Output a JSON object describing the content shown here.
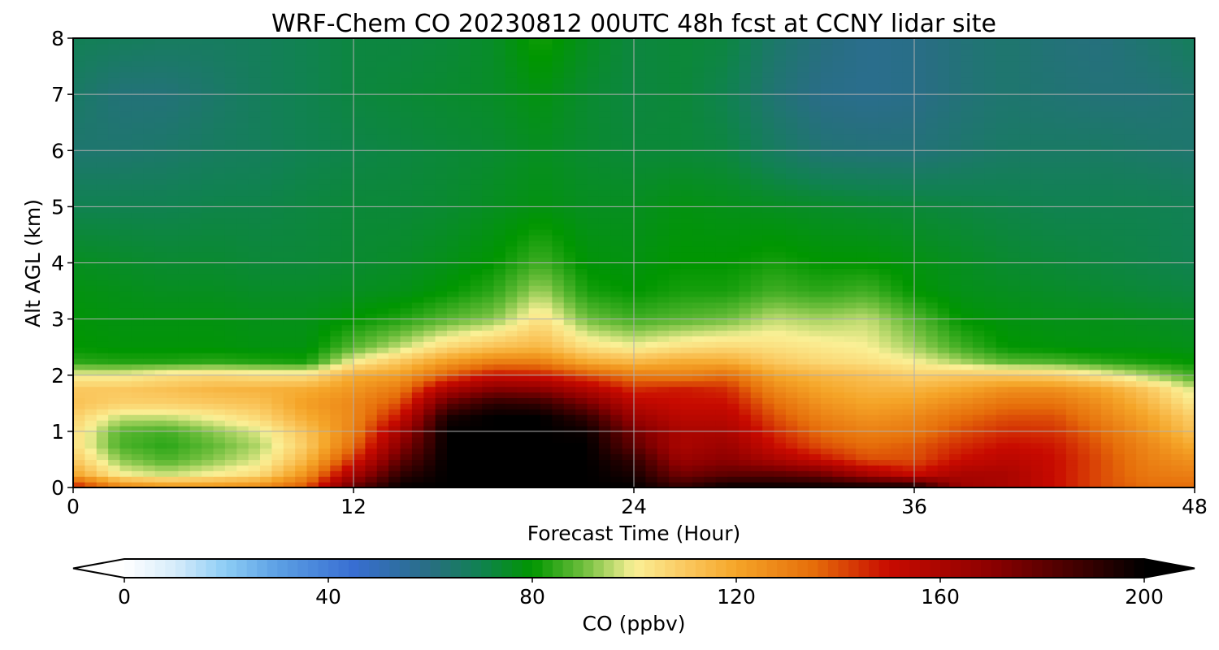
{
  "chart_data": {
    "type": "heatmap",
    "title": "WRF-Chem CO  20230812 00UTC 48h fcst at CCNY lidar site",
    "xlabel": "Forecast Time (Hour)",
    "ylabel": "Alt AGL (km)",
    "xlim": [
      0,
      48
    ],
    "ylim": [
      0,
      8
    ],
    "xticks": [
      0,
      12,
      24,
      36,
      48
    ],
    "yticks": [
      0,
      1,
      2,
      3,
      4,
      5,
      6,
      7,
      8
    ],
    "grid": true,
    "x": [
      0,
      2,
      4,
      6,
      8,
      10,
      12,
      14,
      16,
      18,
      20,
      22,
      24,
      26,
      28,
      30,
      32,
      34,
      36,
      38,
      40,
      42,
      44,
      46,
      48
    ],
    "y": [
      0,
      0.25,
      0.5,
      0.75,
      1,
      1.25,
      1.5,
      1.75,
      2,
      2.25,
      2.5,
      3,
      3.5,
      4,
      5,
      6,
      7,
      8
    ],
    "z": [
      [
        150,
        130,
        125,
        125,
        128,
        140,
        180,
        200,
        200,
        200,
        200,
        200,
        200,
        190,
        200,
        200,
        200,
        200,
        200,
        165,
        160,
        150,
        140,
        135,
        135
      ],
      [
        120,
        100,
        96,
        100,
        105,
        125,
        160,
        190,
        200,
        200,
        200,
        200,
        195,
        175,
        180,
        180,
        175,
        160,
        150,
        160,
        160,
        150,
        140,
        132,
        130
      ],
      [
        110,
        92,
        87,
        92,
        98,
        115,
        145,
        180,
        200,
        200,
        200,
        200,
        190,
        165,
        170,
        160,
        150,
        140,
        140,
        150,
        155,
        150,
        140,
        130,
        125
      ],
      [
        105,
        87,
        84,
        89,
        95,
        110,
        135,
        170,
        200,
        200,
        200,
        200,
        180,
        160,
        165,
        150,
        140,
        135,
        138,
        145,
        150,
        148,
        138,
        128,
        118
      ],
      [
        105,
        88,
        86,
        92,
        98,
        112,
        130,
        162,
        200,
        200,
        200,
        198,
        175,
        160,
        160,
        145,
        135,
        130,
        132,
        140,
        145,
        144,
        135,
        124,
        112
      ],
      [
        108,
        96,
        96,
        100,
        106,
        118,
        128,
        150,
        195,
        200,
        200,
        190,
        165,
        155,
        155,
        140,
        130,
        125,
        128,
        135,
        140,
        140,
        130,
        120,
        108
      ],
      [
        112,
        108,
        108,
        110,
        112,
        122,
        128,
        140,
        180,
        192,
        190,
        175,
        155,
        150,
        150,
        135,
        125,
        120,
        122,
        128,
        134,
        134,
        126,
        115,
        102
      ],
      [
        110,
        110,
        112,
        115,
        116,
        118,
        124,
        132,
        160,
        172,
        170,
        158,
        145,
        148,
        145,
        128,
        120,
        116,
        116,
        120,
        126,
        126,
        120,
        110,
        97
      ],
      [
        100,
        100,
        104,
        106,
        104,
        104,
        118,
        122,
        138,
        150,
        148,
        140,
        132,
        130,
        135,
        120,
        115,
        112,
        108,
        110,
        110,
        108,
        102,
        94,
        86
      ],
      [
        84,
        83,
        83,
        84,
        83,
        82,
        100,
        110,
        122,
        130,
        130,
        118,
        114,
        118,
        118,
        110,
        106,
        104,
        100,
        94,
        88,
        87,
        84,
        82,
        80
      ],
      [
        80,
        79,
        79,
        79,
        78,
        78,
        88,
        96,
        106,
        112,
        115,
        104,
        100,
        104,
        106,
        104,
        102,
        100,
        94,
        86,
        80,
        79,
        78,
        78,
        77
      ],
      [
        79,
        78,
        78,
        78,
        77,
        77,
        80,
        83,
        88,
        92,
        104,
        90,
        86,
        88,
        90,
        96,
        94,
        96,
        88,
        80,
        78,
        77,
        77,
        76,
        75
      ],
      [
        78,
        77,
        76,
        76,
        75,
        75,
        76,
        77,
        80,
        84,
        94,
        82,
        80,
        82,
        82,
        86,
        84,
        86,
        80,
        77,
        76,
        75,
        74,
        73,
        72
      ],
      [
        76,
        75,
        74,
        74,
        73,
        73,
        74,
        75,
        77,
        80,
        86,
        79,
        78,
        80,
        80,
        82,
        80,
        80,
        78,
        76,
        74,
        73,
        72,
        71,
        70
      ],
      [
        70,
        70,
        70,
        71,
        71,
        72,
        73,
        73,
        74,
        76,
        78,
        76,
        76,
        78,
        77,
        76,
        75,
        74,
        73,
        72,
        71,
        70,
        70,
        70,
        69
      ],
      [
        64,
        64,
        65,
        67,
        68,
        70,
        71,
        72,
        73,
        74,
        76,
        74,
        73,
        73,
        72,
        67,
        63,
        62,
        62,
        64,
        66,
        66,
        66,
        65,
        64
      ],
      [
        66,
        62,
        62,
        65,
        68,
        70,
        72,
        73,
        74,
        75,
        78,
        74,
        72,
        73,
        70,
        63,
        59,
        58,
        59,
        62,
        64,
        63,
        62,
        62,
        64
      ],
      [
        69,
        68,
        67,
        67,
        68,
        70,
        72,
        72,
        73,
        75,
        82,
        76,
        72,
        73,
        72,
        65,
        61,
        58,
        59,
        62,
        64,
        62,
        61,
        64,
        68
      ]
    ],
    "colorbar": {
      "label": "CO  (ppbv)",
      "min": 0,
      "max": 200,
      "ticks": [
        0,
        40,
        80,
        120,
        160,
        200
      ],
      "extend": "both"
    }
  }
}
